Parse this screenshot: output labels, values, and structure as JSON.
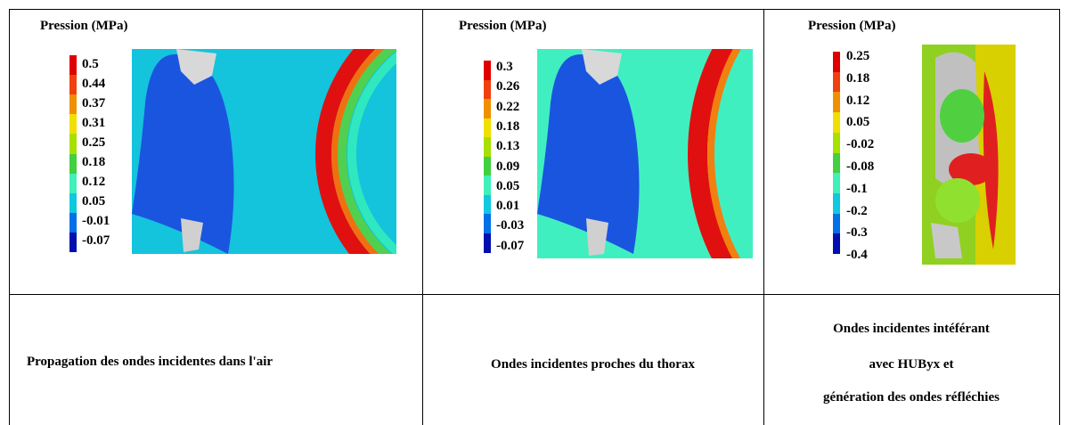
{
  "panels": [
    {
      "legend_title": "Pression (MPa)",
      "legend_labels": [
        "0.5",
        "0.44",
        "0.37",
        "0.31",
        "0.25",
        "0.18",
        "0.12",
        "0.05",
        "-0.01",
        "-0.07"
      ],
      "caption": [
        "Propagation des ondes incidentes dans l'air"
      ]
    },
    {
      "legend_title": "Pression (MPa)",
      "legend_labels": [
        "0.3",
        "0.26",
        "0.22",
        "0.18",
        "0.13",
        "0.09",
        "0.05",
        "0.01",
        "-0.03",
        "-0.07"
      ],
      "caption": [
        "Ondes incidentes proches du thorax"
      ]
    },
    {
      "legend_title": "Pression (MPa)",
      "legend_labels": [
        "0.25",
        "0.18",
        "0.12",
        "0.05",
        "-0.02",
        "-0.08",
        "-0.1",
        "-0.2",
        "-0.3",
        "-0.4"
      ],
      "caption": [
        "Ondes incidentes intéférant",
        "avec HUByx  et",
        "génération des ondes réfléchies"
      ]
    }
  ]
}
